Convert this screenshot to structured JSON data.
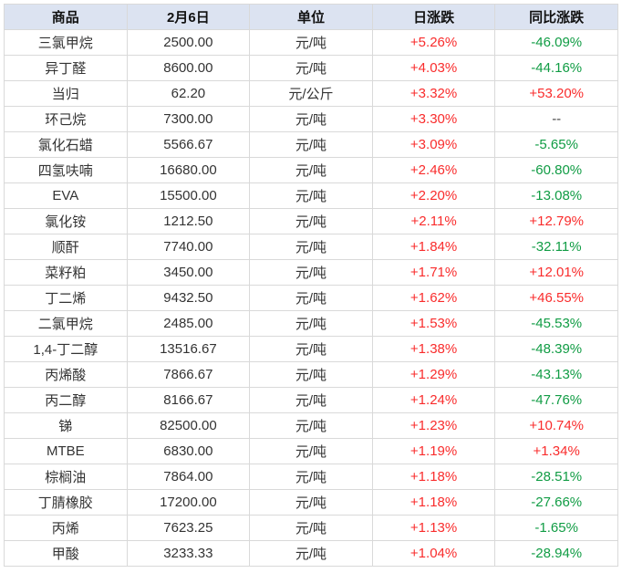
{
  "chart_data": {
    "type": "table",
    "columns": [
      "商品",
      "2月6日",
      "单位",
      "日涨跌",
      "同比涨跌"
    ],
    "rows": [
      [
        "三氯甲烷",
        "2500.00",
        "元/吨",
        "+5.26%",
        "-46.09%"
      ],
      [
        "异丁醛",
        "8600.00",
        "元/吨",
        "+4.03%",
        "-44.16%"
      ],
      [
        "当归",
        "62.20",
        "元/公斤",
        "+3.32%",
        "+53.20%"
      ],
      [
        "环己烷",
        "7300.00",
        "元/吨",
        "+3.30%",
        "--"
      ],
      [
        "氯化石蜡",
        "5566.67",
        "元/吨",
        "+3.09%",
        "-5.65%"
      ],
      [
        "四氢呋喃",
        "16680.00",
        "元/吨",
        "+2.46%",
        "-60.80%"
      ],
      [
        "EVA",
        "15500.00",
        "元/吨",
        "+2.20%",
        "-13.08%"
      ],
      [
        "氯化铵",
        "1212.50",
        "元/吨",
        "+2.11%",
        "+12.79%"
      ],
      [
        "顺酐",
        "7740.00",
        "元/吨",
        "+1.84%",
        "-32.11%"
      ],
      [
        "菜籽粕",
        "3450.00",
        "元/吨",
        "+1.71%",
        "+12.01%"
      ],
      [
        "丁二烯",
        "9432.50",
        "元/吨",
        "+1.62%",
        "+46.55%"
      ],
      [
        "二氯甲烷",
        "2485.00",
        "元/吨",
        "+1.53%",
        "-45.53%"
      ],
      [
        "1,4-丁二醇",
        "13516.67",
        "元/吨",
        "+1.38%",
        "-48.39%"
      ],
      [
        "丙烯酸",
        "7866.67",
        "元/吨",
        "+1.29%",
        "-43.13%"
      ],
      [
        "丙二醇",
        "8166.67",
        "元/吨",
        "+1.24%",
        "-47.76%"
      ],
      [
        "锑",
        "82500.00",
        "元/吨",
        "+1.23%",
        "+10.74%"
      ],
      [
        "MTBE",
        "6830.00",
        "元/吨",
        "+1.19%",
        "+1.34%"
      ],
      [
        "棕榈油",
        "7864.00",
        "元/吨",
        "+1.18%",
        "-28.51%"
      ],
      [
        "丁腈橡胶",
        "17200.00",
        "元/吨",
        "+1.18%",
        "-27.66%"
      ],
      [
        "丙烯",
        "7623.25",
        "元/吨",
        "+1.13%",
        "-1.65%"
      ],
      [
        "甲酸",
        "3233.33",
        "元/吨",
        "+1.04%",
        "-28.94%"
      ]
    ],
    "legend_position": "none",
    "grid": true
  },
  "colors": {
    "up_red": "#f92c2c",
    "down_green": "#109c44",
    "neutral_dash": "#444444",
    "header_bg": "#dce3f1",
    "border": "#d9d9d9",
    "body_text": "#333333"
  }
}
